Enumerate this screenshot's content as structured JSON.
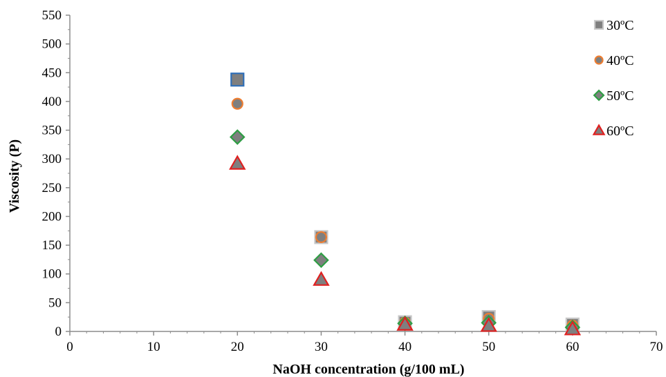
{
  "chart_data": {
    "type": "scatter",
    "title": "",
    "xlabel": "NaOH concentration (g/100 mL)",
    "ylabel": "Viscosity (P)",
    "xlim": [
      0,
      70
    ],
    "ylim": [
      0,
      550
    ],
    "x_ticks": [
      0,
      10,
      20,
      30,
      40,
      50,
      60,
      70
    ],
    "y_ticks": [
      0,
      50,
      100,
      150,
      200,
      250,
      300,
      350,
      400,
      450,
      500,
      550
    ],
    "grid": false,
    "legend_position": "top-right",
    "series": [
      {
        "name": "30ºC",
        "marker": "square",
        "fill": "#7f7f7f",
        "stroke": "#c8c8c8",
        "x": [
          20,
          30,
          40,
          50,
          60
        ],
        "y": [
          438,
          164,
          16,
          25,
          12
        ]
      },
      {
        "name": "40ºC",
        "marker": "circle",
        "fill": "#7f7f7f",
        "stroke": "#ed7d31",
        "x": [
          20,
          30,
          40,
          50,
          60
        ],
        "y": [
          396,
          164,
          15,
          22,
          10
        ]
      },
      {
        "name": "50ºC",
        "marker": "diamond",
        "fill": "#7f7f7f",
        "stroke": "#2e9e44",
        "x": [
          20,
          30,
          40,
          50,
          60
        ],
        "y": [
          338,
          124,
          14,
          15,
          7
        ]
      },
      {
        "name": "60ºC",
        "marker": "triangle",
        "fill": "#7f7f7f",
        "stroke": "#e02020",
        "x": [
          20,
          30,
          40,
          50,
          60
        ],
        "y": [
          292,
          90,
          12,
          10,
          4
        ]
      }
    ],
    "highlighted_point": {
      "series": "30ºC",
      "x": 20,
      "stroke": "#2f6fb8"
    }
  }
}
